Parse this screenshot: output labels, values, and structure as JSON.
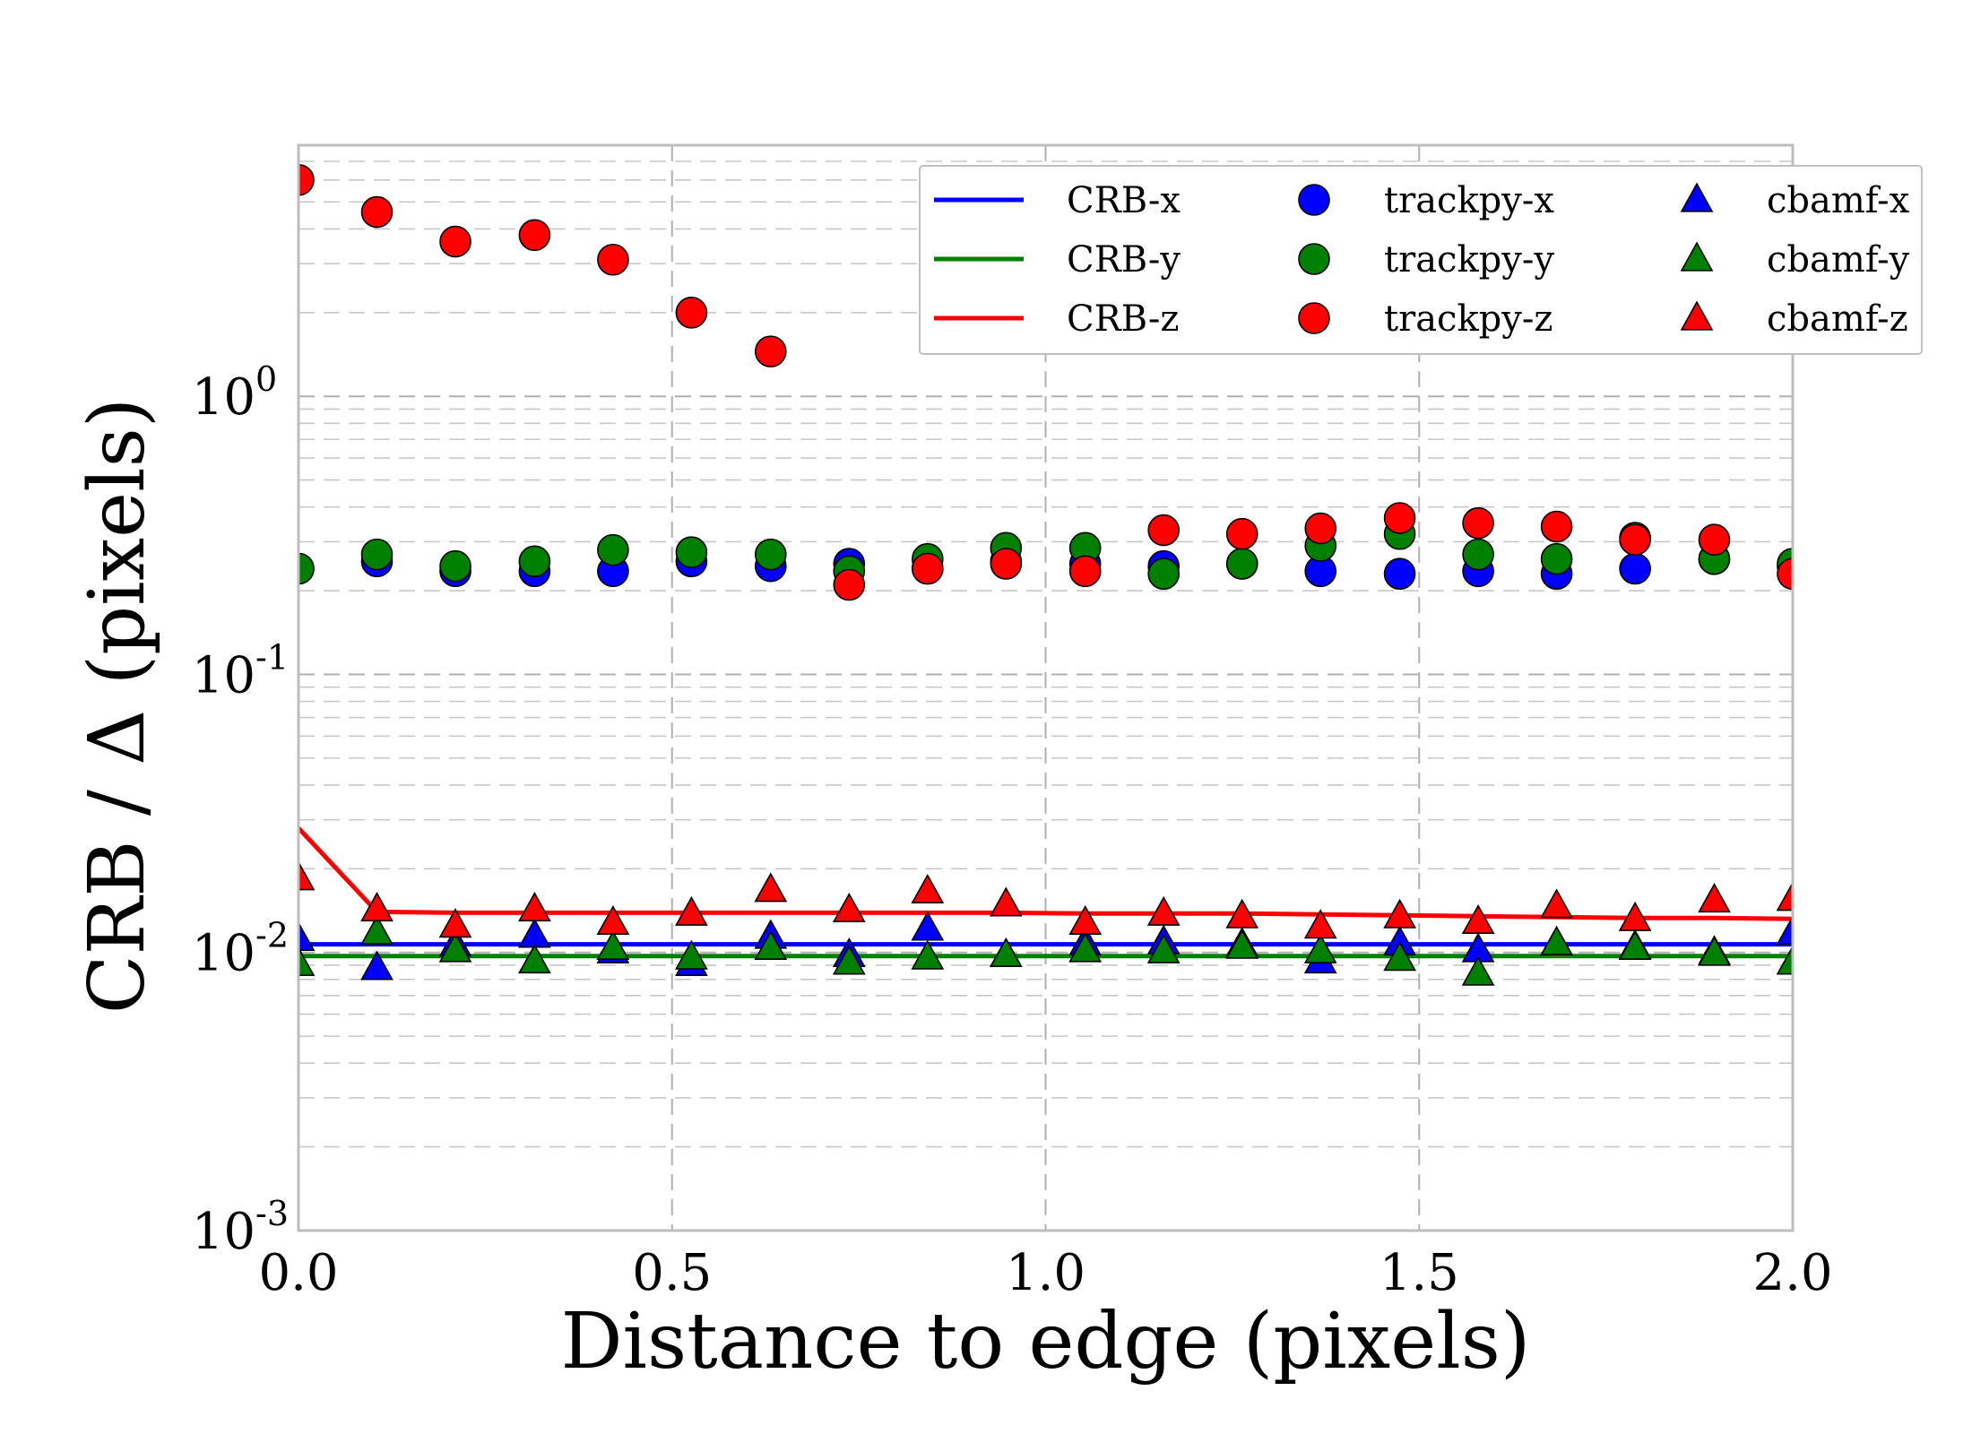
{
  "chart_data": {
    "type": "scatter",
    "xlabel": "Distance to edge (pixels)",
    "ylabel": "CRB / Δ (pixels)",
    "xlim": [
      0.0,
      2.0
    ],
    "ylim": [
      0.001,
      8.0
    ],
    "yscale": "log",
    "grid": true,
    "legend_location": "top-right",
    "x_ticks": [
      0.0,
      0.5,
      1.0,
      1.5,
      2.0
    ],
    "x_tick_labels": [
      "0.0",
      "0.5",
      "1.0",
      "1.5",
      "2.0"
    ],
    "y_ticks": [
      0.001,
      0.01,
      0.1,
      1
    ],
    "y_tick_labels": [
      {
        "base": "10",
        "exp": "-3"
      },
      {
        "base": "10",
        "exp": "-2"
      },
      {
        "base": "10",
        "exp": "-1"
      },
      {
        "base": "10",
        "exp": "0"
      }
    ],
    "x": [
      0.0,
      0.105,
      0.21,
      0.316,
      0.421,
      0.526,
      0.632,
      0.737,
      0.842,
      0.947,
      1.053,
      1.158,
      1.263,
      1.368,
      1.474,
      1.579,
      1.684,
      1.789,
      1.895,
      2.0
    ],
    "series": [
      {
        "name": "CRB-x",
        "kind": "line",
        "color": "#0000ff",
        "values": [
          0.0107,
          0.0107,
          0.0107,
          0.0107,
          0.0107,
          0.0107,
          0.0107,
          0.0107,
          0.0107,
          0.0107,
          0.0107,
          0.0107,
          0.0107,
          0.0107,
          0.0107,
          0.0107,
          0.0107,
          0.0107,
          0.0107,
          0.0107
        ]
      },
      {
        "name": "CRB-y",
        "kind": "line",
        "color": "#008000",
        "values": [
          0.0097,
          0.0097,
          0.0097,
          0.0097,
          0.0097,
          0.0097,
          0.0097,
          0.0097,
          0.0097,
          0.0097,
          0.0097,
          0.0097,
          0.0097,
          0.0097,
          0.0097,
          0.0097,
          0.0097,
          0.0097,
          0.0097,
          0.0097
        ]
      },
      {
        "name": "CRB-z",
        "kind": "line",
        "color": "#ff0000",
        "values": [
          0.028,
          0.014,
          0.0139,
          0.0139,
          0.0139,
          0.0139,
          0.0139,
          0.0139,
          0.0139,
          0.0139,
          0.0138,
          0.0138,
          0.0138,
          0.0137,
          0.0136,
          0.0135,
          0.0134,
          0.0133,
          0.0133,
          0.0132
        ]
      },
      {
        "name": "trackpy-x",
        "kind": "circle",
        "color": "#0000ff",
        "values": [
          0.24,
          0.255,
          0.235,
          0.235,
          0.235,
          0.255,
          0.245,
          0.25,
          0.24,
          0.255,
          0.25,
          0.245,
          0.25,
          0.235,
          0.23,
          0.235,
          0.23,
          0.24,
          0.26,
          0.245
        ]
      },
      {
        "name": "trackpy-y",
        "kind": "circle",
        "color": "#008000",
        "values": [
          0.24,
          0.27,
          0.245,
          0.255,
          0.28,
          0.275,
          0.27,
          0.235,
          0.26,
          0.285,
          0.285,
          0.23,
          0.25,
          0.29,
          0.32,
          0.27,
          0.26,
          0.31,
          0.26,
          0.25
        ]
      },
      {
        "name": "trackpy-z",
        "kind": "circle",
        "color": "#ff0000",
        "values": [
          6.0,
          4.6,
          3.6,
          3.8,
          3.1,
          2.0,
          1.45,
          0.21,
          0.24,
          0.25,
          0.235,
          0.33,
          0.32,
          0.335,
          0.365,
          0.35,
          0.34,
          0.305,
          0.305,
          0.23
        ]
      },
      {
        "name": "cbamf-x",
        "kind": "triangle",
        "color": "#0000ff",
        "values": [
          0.0112,
          0.0088,
          0.0107,
          0.0115,
          0.0101,
          0.0091,
          0.0114,
          0.0098,
          0.0122,
          0.0098,
          0.0108,
          0.0109,
          0.0107,
          0.0093,
          0.0108,
          0.0102,
          0.0108,
          0.0105,
          0.01,
          0.0118
        ]
      },
      {
        "name": "cbamf-y",
        "kind": "triangle",
        "color": "#008000",
        "values": [
          0.0091,
          0.0118,
          0.0102,
          0.0093,
          0.0104,
          0.0096,
          0.0104,
          0.0092,
          0.0096,
          0.0098,
          0.0102,
          0.0101,
          0.0105,
          0.0101,
          0.0095,
          0.0084,
          0.0108,
          0.0104,
          0.0099,
          0.0092
        ]
      },
      {
        "name": "cbamf-z",
        "kind": "triangle",
        "color": "#ff0000",
        "values": [
          0.0185,
          0.0143,
          0.0125,
          0.0143,
          0.0128,
          0.0138,
          0.0168,
          0.0142,
          0.0166,
          0.0149,
          0.0128,
          0.0138,
          0.0135,
          0.0124,
          0.0135,
          0.0129,
          0.0147,
          0.0132,
          0.0154,
          0.0156
        ]
      }
    ]
  },
  "legend": {
    "items": [
      {
        "label": "CRB-x",
        "kind": "line",
        "color": "#0000ff"
      },
      {
        "label": "CRB-y",
        "kind": "line",
        "color": "#008000"
      },
      {
        "label": "CRB-z",
        "kind": "line",
        "color": "#ff0000"
      },
      {
        "label": "trackpy-x",
        "kind": "circle",
        "color": "#0000ff"
      },
      {
        "label": "trackpy-y",
        "kind": "circle",
        "color": "#008000"
      },
      {
        "label": "trackpy-z",
        "kind": "circle",
        "color": "#ff0000"
      },
      {
        "label": "cbamf-x",
        "kind": "triangle",
        "color": "#0000ff"
      },
      {
        "label": "cbamf-y",
        "kind": "triangle",
        "color": "#008000"
      },
      {
        "label": "cbamf-z",
        "kind": "triangle",
        "color": "#ff0000"
      }
    ]
  }
}
